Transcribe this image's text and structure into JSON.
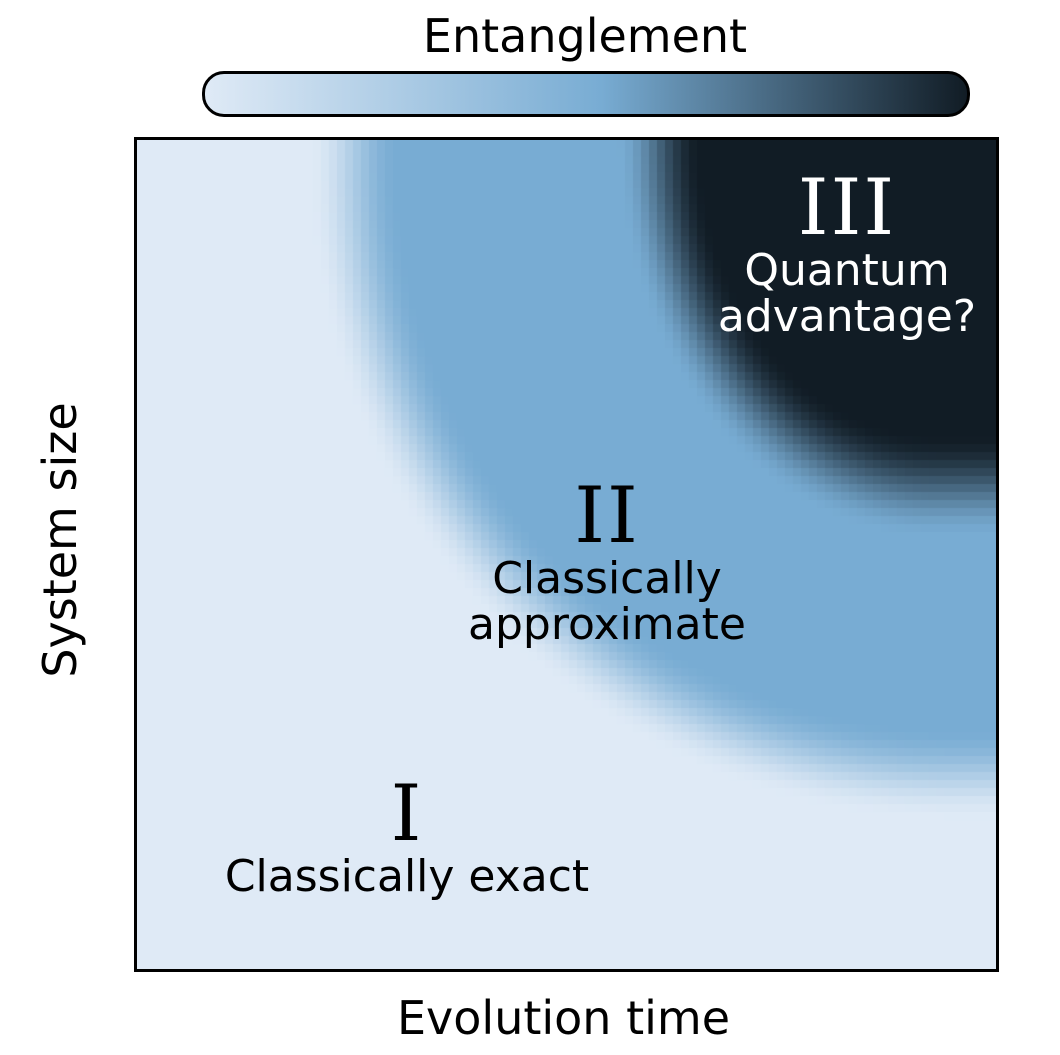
{
  "colorbar": {
    "label": "Entanglement",
    "colors": [
      "#dfeaf6",
      "#78acd3",
      "#111c25"
    ]
  },
  "axes": {
    "xlabel": "Evolution time",
    "ylabel": "System size"
  },
  "regions": [
    {
      "numeral": "I",
      "lines": [
        "Classically exact"
      ],
      "entanglement": "low"
    },
    {
      "numeral": "II",
      "lines": [
        "Classically",
        "approximate"
      ],
      "entanglement": "medium"
    },
    {
      "numeral": "III",
      "lines": [
        "Quantum",
        "advantage?"
      ],
      "entanglement": "high"
    }
  ]
}
